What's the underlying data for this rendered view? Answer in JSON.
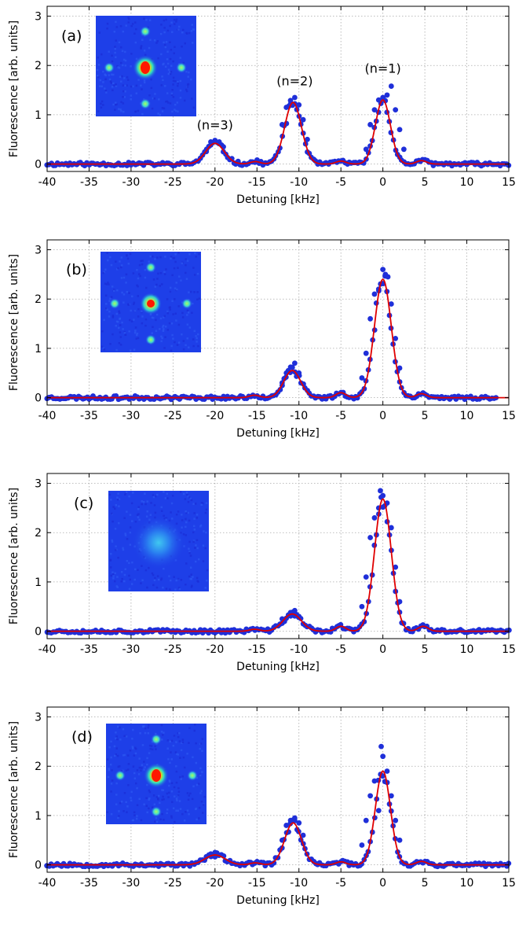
{
  "chart_data": [
    {
      "type": "scatter",
      "panel_label": "(a)",
      "xlabel": "Detuning [kHz]",
      "ylabel": "Fluorescence [arb. units]",
      "xlim": [
        -40,
        15
      ],
      "ylim": [
        -0.15,
        3.2
      ],
      "xticks": [
        -40,
        -35,
        -30,
        -25,
        -20,
        -15,
        -10,
        -5,
        0,
        5,
        10,
        15
      ],
      "yticks": [
        0,
        1,
        2,
        3
      ],
      "grid": true,
      "inset": {
        "pattern": "lattice",
        "central_peak": "strong",
        "side_peaks": 4
      },
      "annotations": [
        {
          "text": "(n=3)",
          "x": -20,
          "y": 0.7
        },
        {
          "text": "(n=2)",
          "x": -10.5,
          "y": 1.6
        },
        {
          "text": "(n=1)",
          "x": 0,
          "y": 1.85
        }
      ],
      "fit_peaks": [
        {
          "center": 0,
          "height": 1.3,
          "sigma": 0.9
        },
        {
          "center": -10.7,
          "height": 1.25,
          "sigma": 1.0
        },
        {
          "center": -20,
          "height": 0.42,
          "sigma": 1.1
        },
        {
          "center": 4.6,
          "height": 0.07,
          "sigma": 0.6
        },
        {
          "center": -5,
          "height": 0.06,
          "sigma": 0.6
        },
        {
          "center": -15.2,
          "height": 0.05,
          "sigma": 0.6
        }
      ],
      "x_range_points": [
        -40,
        15
      ],
      "series": [
        {
          "x": [
            -2,
            -1.5,
            -1,
            -0.5,
            0,
            0.5,
            1,
            1.5,
            2,
            2.5,
            -12,
            -11.5,
            -11,
            -10.5,
            -10,
            -9.5,
            -9,
            -21,
            -20.5,
            -20,
            -19.5,
            -19
          ],
          "y": [
            0.3,
            0.8,
            1.1,
            1.3,
            1.35,
            1.4,
            1.58,
            1.1,
            0.7,
            0.3,
            0.8,
            1.15,
            1.22,
            1.35,
            1.2,
            0.9,
            0.5,
            0.3,
            0.45,
            0.48,
            0.45,
            0.35
          ]
        }
      ],
      "seed": 11
    },
    {
      "type": "scatter",
      "panel_label": "(b)",
      "xlabel": "Detuning [kHz]",
      "ylabel": "Fluorescence [arb. units]",
      "xlim": [
        -40,
        15
      ],
      "ylim": [
        -0.15,
        3.2
      ],
      "xticks": [
        -40,
        -35,
        -30,
        -25,
        -20,
        -15,
        -10,
        -5,
        0,
        5,
        10,
        15
      ],
      "yticks": [
        0,
        1,
        2,
        3
      ],
      "grid": true,
      "inset": {
        "pattern": "lattice",
        "central_peak": "medium",
        "side_peaks": 4
      },
      "annotations": [],
      "fit_peaks": [
        {
          "center": 0,
          "height": 2.4,
          "sigma": 1.0
        },
        {
          "center": -10.8,
          "height": 0.55,
          "sigma": 1.0
        },
        {
          "center": -5,
          "height": 0.1,
          "sigma": 0.6
        },
        {
          "center": 4.6,
          "height": 0.08,
          "sigma": 0.6
        },
        {
          "center": -15.3,
          "height": 0.05,
          "sigma": 0.6
        }
      ],
      "x_range_points": [
        -40,
        13.5
      ],
      "series": [
        {
          "x": [
            -2.5,
            -2,
            -1.5,
            -1,
            -0.5,
            0,
            0.3,
            0.6,
            1,
            1.5,
            2,
            -12,
            -11.5,
            -11,
            -10.5,
            -10
          ],
          "y": [
            0.4,
            0.9,
            1.6,
            2.1,
            2.2,
            2.6,
            2.5,
            2.45,
            1.9,
            1.2,
            0.6,
            0.3,
            0.5,
            0.62,
            0.7,
            0.5
          ]
        }
      ],
      "seed": 23
    },
    {
      "type": "scatter",
      "panel_label": "(c)",
      "xlabel": "Detuning [kHz]",
      "ylabel": "Fluorescence [arb. units]",
      "xlim": [
        -40,
        15
      ],
      "ylim": [
        -0.15,
        3.2
      ],
      "xticks": [
        -40,
        -35,
        -30,
        -25,
        -20,
        -15,
        -10,
        -5,
        0,
        5,
        10,
        15
      ],
      "yticks": [
        0,
        1,
        2,
        3
      ],
      "grid": true,
      "inset": {
        "pattern": "diffuse",
        "central_peak": "weak",
        "side_peaks": 0
      },
      "annotations": [],
      "fit_peaks": [
        {
          "center": 0,
          "height": 2.68,
          "sigma": 1.0
        },
        {
          "center": -10.8,
          "height": 0.35,
          "sigma": 1.1
        },
        {
          "center": -5,
          "height": 0.1,
          "sigma": 0.6
        },
        {
          "center": 4.8,
          "height": 0.1,
          "sigma": 0.6
        },
        {
          "center": -15.3,
          "height": 0.04,
          "sigma": 0.6
        }
      ],
      "x_range_points": [
        -40,
        15
      ],
      "series": [
        {
          "x": [
            -2.5,
            -2,
            -1.5,
            -1,
            -0.5,
            -0.3,
            0,
            0.5,
            1,
            1.5,
            2,
            -12,
            -11,
            -10.5,
            -10
          ],
          "y": [
            0.5,
            1.1,
            1.9,
            2.3,
            2.5,
            2.85,
            2.75,
            2.6,
            2.1,
            1.3,
            0.6,
            0.25,
            0.38,
            0.42,
            0.3
          ]
        }
      ],
      "seed": 37
    },
    {
      "type": "scatter",
      "panel_label": "(d)",
      "xlabel": "Detuning [kHz]",
      "ylabel": "Fluorescence [arb. units]",
      "xlim": [
        -40,
        15
      ],
      "ylim": [
        -0.15,
        3.2
      ],
      "xticks": [
        -40,
        -35,
        -30,
        -25,
        -20,
        -15,
        -10,
        -5,
        0,
        5,
        10,
        15
      ],
      "yticks": [
        0,
        1,
        2,
        3
      ],
      "grid": true,
      "inset": {
        "pattern": "lattice",
        "central_peak": "strong",
        "side_peaks": 4
      },
      "annotations": [],
      "fit_peaks": [
        {
          "center": 0,
          "height": 1.9,
          "sigma": 0.9
        },
        {
          "center": -10.7,
          "height": 0.85,
          "sigma": 1.0
        },
        {
          "center": -20,
          "height": 0.2,
          "sigma": 1.2
        },
        {
          "center": 4.6,
          "height": 0.07,
          "sigma": 0.6
        },
        {
          "center": -5,
          "height": 0.06,
          "sigma": 0.6
        },
        {
          "center": -15.2,
          "height": 0.04,
          "sigma": 0.6
        }
      ],
      "x_range_points": [
        -40,
        15
      ],
      "series": [
        {
          "x": [
            -2.5,
            -2,
            -1.5,
            -1,
            -0.5,
            -0.2,
            0,
            0.5,
            1,
            1.5,
            2,
            -12,
            -11.5,
            -11,
            -10.5,
            -10,
            -9.5,
            -20.5,
            -20,
            -19.5
          ],
          "y": [
            0.4,
            0.9,
            1.4,
            1.7,
            1.1,
            2.4,
            2.2,
            1.9,
            1.4,
            0.9,
            0.5,
            0.5,
            0.8,
            0.9,
            0.95,
            0.85,
            0.6,
            0.22,
            0.25,
            0.2
          ]
        }
      ],
      "seed": 53
    }
  ],
  "colors": {
    "points": "#1f2fd9",
    "fit_line": "#e00000",
    "grid": "#a9a9a9",
    "inset_background": "#1e3fe8"
  }
}
